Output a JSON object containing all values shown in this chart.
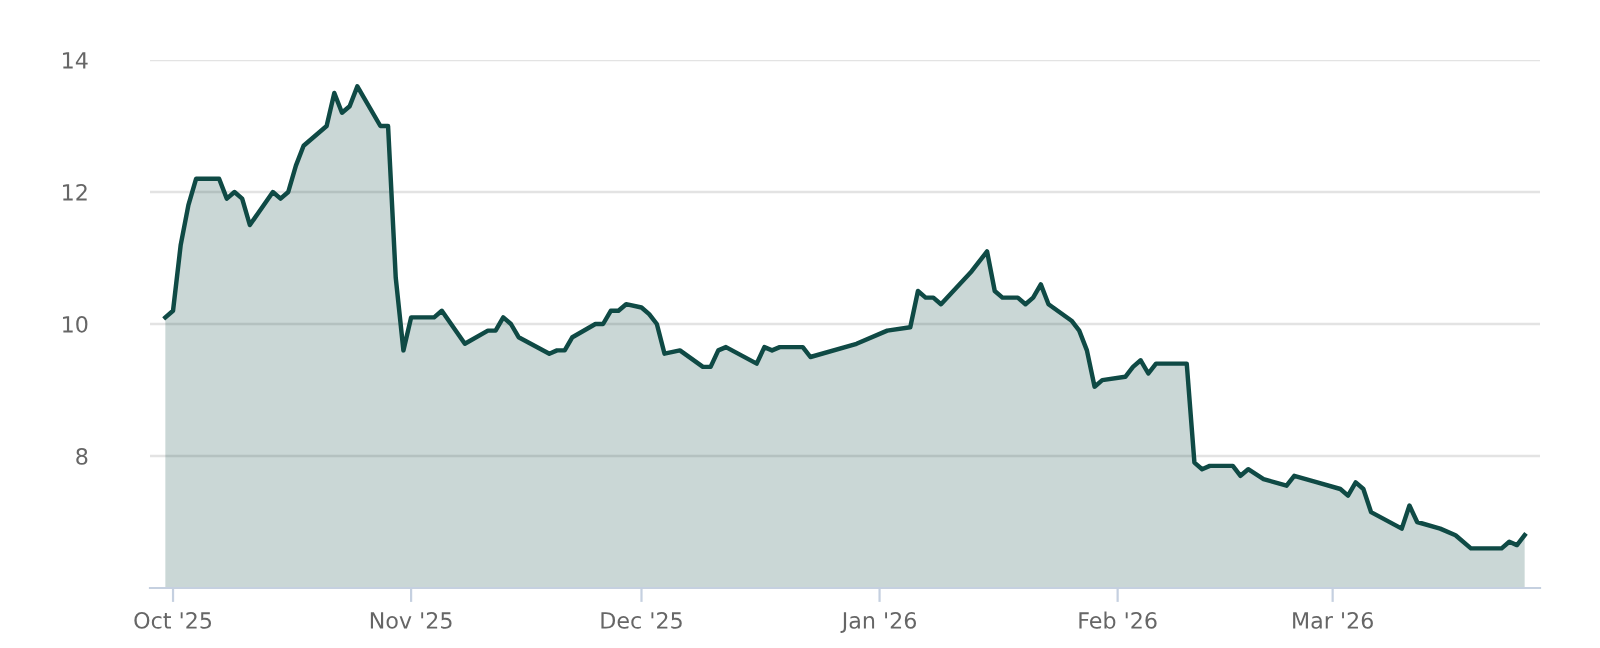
{
  "chart_data": {
    "type": "area",
    "color": "#0f4a45",
    "grid": "y",
    "x": [
      "2025-09-30",
      "2025-10-01",
      "2025-10-02",
      "2025-10-03",
      "2025-10-04",
      "2025-10-07",
      "2025-10-08",
      "2025-10-09",
      "2025-10-10",
      "2025-10-11",
      "2025-10-14",
      "2025-10-15",
      "2025-10-16",
      "2025-10-17",
      "2025-10-18",
      "2025-10-21",
      "2025-10-22",
      "2025-10-23",
      "2025-10-24",
      "2025-10-25",
      "2025-10-28",
      "2025-10-29",
      "2025-10-30",
      "2025-10-31",
      "2025-11-01",
      "2025-11-04",
      "2025-11-05",
      "2025-11-08",
      "2025-11-11",
      "2025-11-12",
      "2025-11-13",
      "2025-11-14",
      "2025-11-15",
      "2025-11-19",
      "2025-11-20",
      "2025-11-21",
      "2025-11-22",
      "2025-11-25",
      "2025-11-26",
      "2025-11-27",
      "2025-11-28",
      "2025-11-29",
      "2025-12-01",
      "2025-12-02",
      "2025-12-03",
      "2025-12-04",
      "2025-12-06",
      "2025-12-09",
      "2025-12-10",
      "2025-12-11",
      "2025-12-12",
      "2025-12-16",
      "2025-12-17",
      "2025-12-18",
      "2025-12-19",
      "2025-12-22",
      "2025-12-23",
      "2025-12-29",
      "2026-01-02",
      "2026-01-05",
      "2026-01-06",
      "2026-01-07",
      "2026-01-08",
      "2026-01-09",
      "2026-01-13",
      "2026-01-15",
      "2026-01-16",
      "2026-01-17",
      "2026-01-19",
      "2026-01-20",
      "2026-01-21",
      "2026-01-22",
      "2026-01-23",
      "2026-01-26",
      "2026-01-27",
      "2026-01-28",
      "2026-01-29",
      "2026-01-30",
      "2026-02-02",
      "2026-02-03",
      "2026-02-04",
      "2026-02-05",
      "2026-02-06",
      "2026-02-10",
      "2026-02-11",
      "2026-02-12",
      "2026-02-13",
      "2026-02-16",
      "2026-02-17",
      "2026-02-18",
      "2026-02-20",
      "2026-02-23",
      "2026-02-24",
      "2026-02-27",
      "2026-03-02",
      "2026-03-03",
      "2026-03-04",
      "2026-03-05",
      "2026-03-06",
      "2026-03-10",
      "2026-03-11",
      "2026-03-12",
      "2026-03-15",
      "2026-03-17",
      "2026-03-19",
      "2026-03-20",
      "2026-03-23",
      "2026-03-24",
      "2026-03-25",
      "2026-03-26"
    ],
    "values": [
      10.1,
      10.2,
      11.2,
      11.8,
      12.2,
      12.2,
      11.9,
      12.0,
      11.9,
      11.5,
      12.0,
      11.9,
      12.0,
      12.4,
      12.7,
      13.0,
      13.5,
      13.2,
      13.3,
      13.6,
      13.0,
      13.0,
      10.7,
      9.6,
      10.1,
      10.1,
      10.2,
      9.7,
      9.9,
      9.9,
      10.1,
      10.0,
      9.8,
      9.55,
      9.6,
      9.6,
      9.8,
      10.0,
      10.0,
      10.2,
      10.2,
      10.3,
      10.25,
      10.15,
      10.0,
      9.55,
      9.6,
      9.35,
      9.35,
      9.6,
      9.65,
      9.4,
      9.65,
      9.6,
      9.65,
      9.65,
      9.5,
      9.7,
      9.9,
      9.95,
      10.5,
      10.4,
      10.4,
      10.3,
      10.8,
      11.1,
      10.5,
      10.4,
      10.4,
      10.3,
      10.4,
      10.6,
      10.3,
      10.05,
      9.9,
      9.6,
      9.05,
      9.15,
      9.2,
      9.35,
      9.45,
      9.25,
      9.4,
      9.4,
      7.9,
      7.8,
      7.85,
      7.85,
      7.7,
      7.8,
      7.65,
      7.55,
      7.7,
      7.6,
      7.5,
      7.4,
      7.6,
      7.5,
      7.15,
      6.9,
      7.25,
      7.0,
      6.9,
      6.8,
      6.6,
      6.6,
      6.6,
      6.7,
      6.65,
      6.8
    ],
    "xlim": [
      "2025-09-28",
      "2026-03-28"
    ],
    "xticks": [
      {
        "value": "2025-10-01",
        "label": "Oct '25"
      },
      {
        "value": "2025-11-01",
        "label": "Nov '25"
      },
      {
        "value": "2025-12-01",
        "label": "Dec '25"
      },
      {
        "value": "2026-01-01",
        "label": "Jan '26"
      },
      {
        "value": "2026-02-01",
        "label": "Feb '26"
      },
      {
        "value": "2026-03-01",
        "label": "Mar '26"
      }
    ],
    "ylim": [
      6,
      14
    ],
    "yticks": [
      8,
      10,
      12,
      14
    ]
  }
}
